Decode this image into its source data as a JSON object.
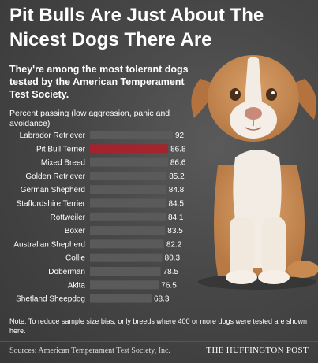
{
  "header": {
    "title": "Pit Bulls Are Just About The Nicest Dogs There Are",
    "subtitle": "They're among the most tolerant dogs tested by the American Temperament Test Society."
  },
  "footer": {
    "note": "Note: To reduce sample size bias, only breeds where 400 or more dogs were tested are shown here.",
    "source": "Sources: American Temperament Test Society, Inc.",
    "brand": "THE HUFFINGTON POST"
  },
  "colors": {
    "bar": "#5a5a5a",
    "highlight_bar": "#a3242c",
    "text": "#ffffff"
  },
  "chart_data": {
    "type": "bar",
    "orientation": "horizontal",
    "title": "",
    "ylabel": "Percent passing (low aggression, panic and avoidance)",
    "xlim": [
      0,
      100
    ],
    "highlight": "Pit Bull Terrier",
    "categories": [
      "Labrador Retriever",
      "Pit Bull Terrier",
      "Mixed Breed",
      "Golden Retriever",
      "German Shepherd",
      "Staffordshire Terrier",
      "Rottweiler",
      "Boxer",
      "Australian Shepherd",
      "Collie",
      "Doberman",
      "Akita",
      "Shetland Sheepdog"
    ],
    "values": [
      92,
      86.8,
      86.6,
      85.2,
      84.8,
      84.5,
      84.1,
      83.5,
      82.2,
      80.3,
      78.5,
      76.5,
      68.3
    ],
    "value_labels": [
      "92",
      "86.8",
      "86.6",
      "85.2",
      "84.8",
      "84.5",
      "84.1",
      "83.5",
      "82.2",
      "80.3",
      "78.5",
      "76.5",
      "68.3"
    ]
  }
}
